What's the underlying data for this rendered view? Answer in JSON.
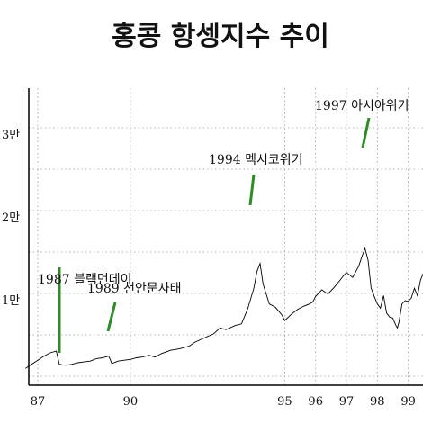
{
  "chart_data": {
    "type": "line",
    "title": "홍콩 항셍지수 추이",
    "xlabel": "",
    "ylabel": "",
    "x_ticks": [
      {
        "label": "87",
        "x": 1987.0
      },
      {
        "label": "90",
        "x": 1990.0
      },
      {
        "label": "95",
        "x": 1995.0
      },
      {
        "label": "96",
        "x": 1996.0
      },
      {
        "label": "97",
        "x": 1997.0
      },
      {
        "label": "98",
        "x": 1998.0
      },
      {
        "label": "99",
        "x": 1999.0
      }
    ],
    "y_ticks": [
      {
        "label": "1만",
        "y": 10000
      },
      {
        "label": "2만",
        "y": 20000
      },
      {
        "label": "3만",
        "y": 30000
      }
    ],
    "grid": true,
    "annotations": [
      {
        "label": "1987 블랙먼데이",
        "x": 1987.6,
        "y": 3900
      },
      {
        "label": "1989 천안문사태",
        "x": 1989.3,
        "y": 3300
      },
      {
        "label": "1994 멕시코위기",
        "x": 1994.2,
        "y": 23000
      },
      {
        "label": "1997 아시아위기",
        "x": 1997.6,
        "y": 27000
      }
    ],
    "series": [
      {
        "name": "",
        "points": [
          [
            1986.6,
            1800
          ],
          [
            1986.8,
            2300
          ],
          [
            1987.0,
            2800
          ],
          [
            1987.2,
            3300
          ],
          [
            1987.4,
            3700
          ],
          [
            1987.6,
            3900
          ],
          [
            1987.7,
            2300
          ],
          [
            1987.9,
            2200
          ],
          [
            1988.1,
            2300
          ],
          [
            1988.3,
            2500
          ],
          [
            1988.5,
            2600
          ],
          [
            1988.7,
            2700
          ],
          [
            1988.9,
            3000
          ],
          [
            1989.1,
            3100
          ],
          [
            1989.3,
            3300
          ],
          [
            1989.4,
            2400
          ],
          [
            1989.6,
            2700
          ],
          [
            1989.8,
            2800
          ],
          [
            1990.0,
            2900
          ],
          [
            1990.2,
            3100
          ],
          [
            1990.4,
            3200
          ],
          [
            1990.6,
            3400
          ],
          [
            1990.8,
            3200
          ],
          [
            1991.0,
            3600
          ],
          [
            1991.3,
            4000
          ],
          [
            1991.6,
            4200
          ],
          [
            1991.9,
            4500
          ],
          [
            1992.1,
            5000
          ],
          [
            1992.4,
            5500
          ],
          [
            1992.7,
            6000
          ],
          [
            1992.9,
            6700
          ],
          [
            1993.1,
            6500
          ],
          [
            1993.4,
            7000
          ],
          [
            1993.6,
            7200
          ],
          [
            1993.8,
            9000
          ],
          [
            1994.0,
            11500
          ],
          [
            1994.1,
            13500
          ],
          [
            1994.2,
            14500
          ],
          [
            1994.3,
            12000
          ],
          [
            1994.5,
            9600
          ],
          [
            1994.7,
            9200
          ],
          [
            1994.9,
            8300
          ],
          [
            1995.0,
            7600
          ],
          [
            1995.2,
            8300
          ],
          [
            1995.4,
            8900
          ],
          [
            1995.6,
            9300
          ],
          [
            1995.8,
            9600
          ],
          [
            1995.9,
            9800
          ],
          [
            1996.0,
            10500
          ],
          [
            1996.2,
            11300
          ],
          [
            1996.4,
            10800
          ],
          [
            1996.6,
            11600
          ],
          [
            1996.8,
            12500
          ],
          [
            1996.9,
            13000
          ],
          [
            1997.0,
            13400
          ],
          [
            1997.2,
            12800
          ],
          [
            1997.4,
            14200
          ],
          [
            1997.5,
            15300
          ],
          [
            1997.6,
            16300
          ],
          [
            1997.7,
            14900
          ],
          [
            1997.8,
            11500
          ],
          [
            1997.9,
            10500
          ],
          [
            1998.0,
            9600
          ],
          [
            1998.1,
            9100
          ],
          [
            1998.2,
            10600
          ],
          [
            1998.3,
            8500
          ],
          [
            1998.4,
            8000
          ],
          [
            1998.5,
            7900
          ],
          [
            1998.6,
            7000
          ],
          [
            1998.65,
            6700
          ],
          [
            1998.7,
            7400
          ],
          [
            1998.8,
            9600
          ],
          [
            1998.9,
            10000
          ],
          [
            1999.0,
            9900
          ],
          [
            1999.1,
            10300
          ],
          [
            1999.2,
            11500
          ],
          [
            1999.3,
            10600
          ],
          [
            1999.4,
            12500
          ],
          [
            1999.5,
            13400
          ],
          [
            1999.55,
            12700
          ],
          [
            1999.6,
            13600
          ]
        ]
      }
    ]
  }
}
